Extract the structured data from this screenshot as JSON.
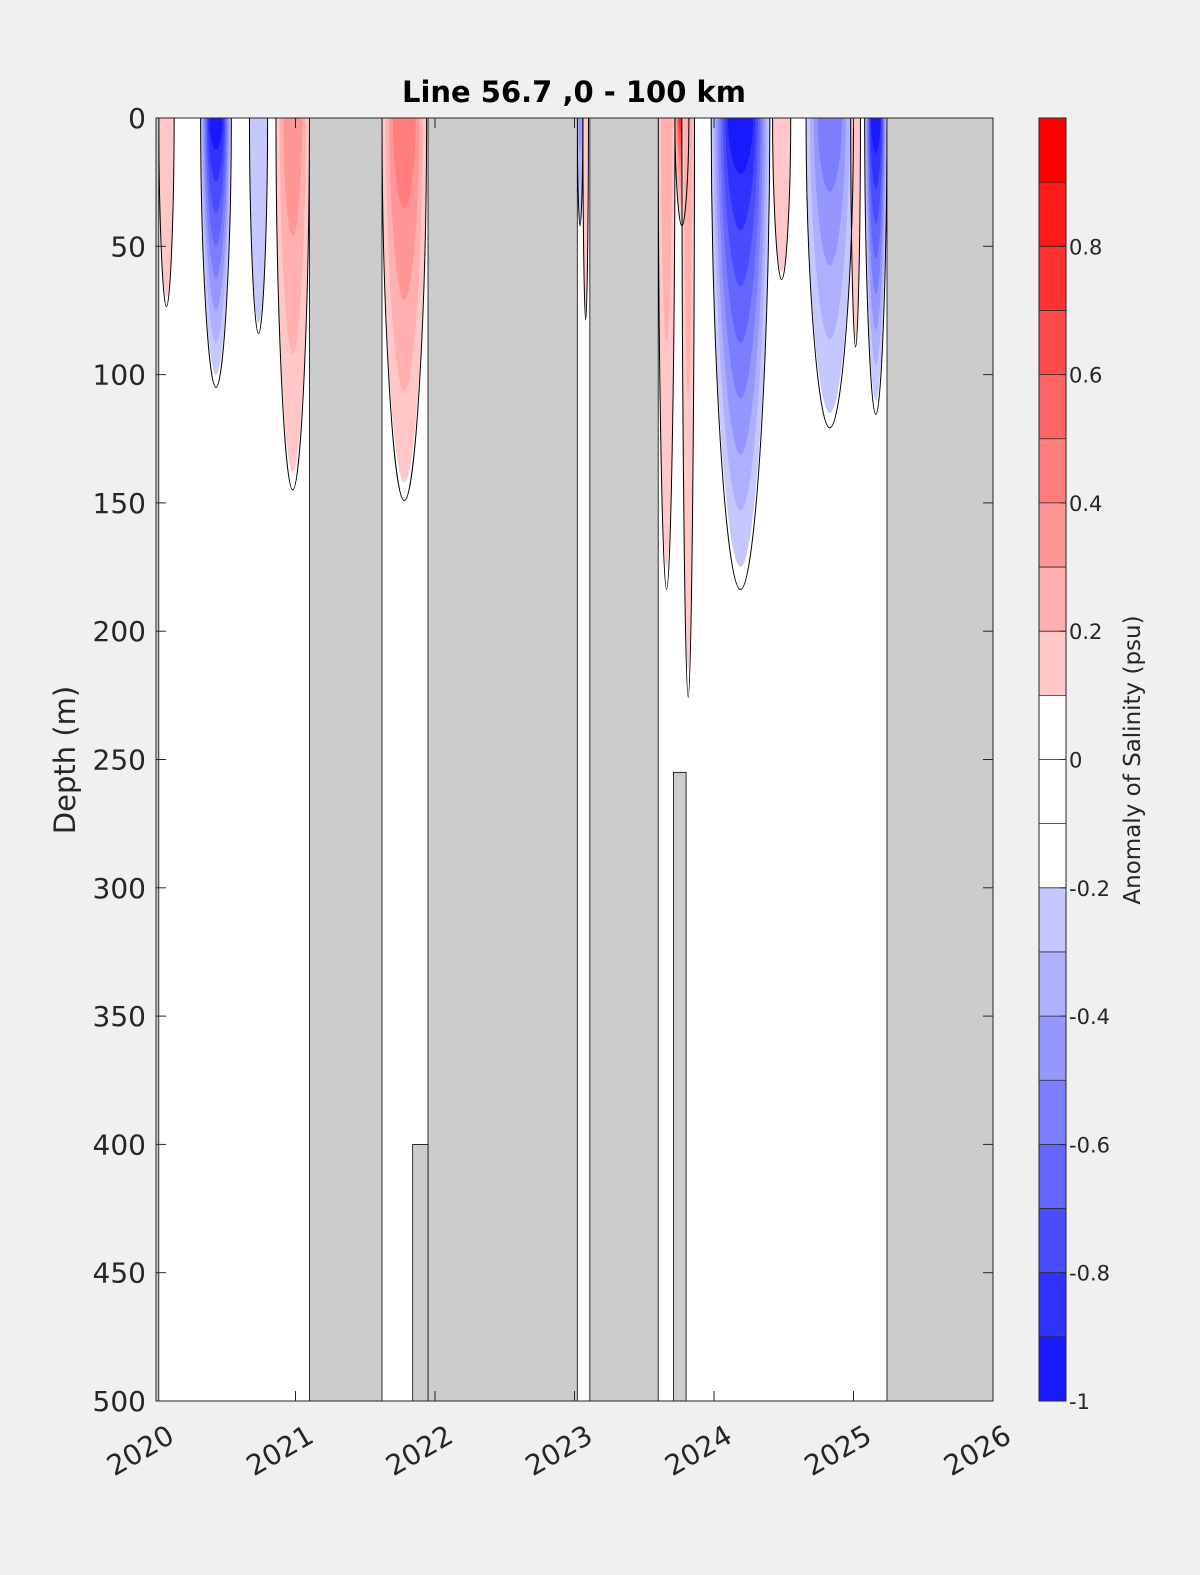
{
  "chart_data": {
    "type": "heatmap",
    "title": "Line 56.7 ,0 - 100 km",
    "ylabel": "Depth (m)",
    "xlim": [
      2020,
      2026
    ],
    "ylim": [
      0,
      500
    ],
    "y_reversed": true,
    "x_ticks": [
      "2020",
      "2021",
      "2022",
      "2023",
      "2024",
      "2025",
      "2026"
    ],
    "y_ticks": [
      "0",
      "50",
      "100",
      "150",
      "200",
      "250",
      "300",
      "350",
      "400",
      "450",
      "500"
    ],
    "no_data_color": "#cccccc",
    "no_data_intervals": [
      {
        "x0": 2021.1,
        "x1": 2021.62,
        "y0": 0,
        "y1": 500
      },
      {
        "x0": 2021.95,
        "x1": 2023.02,
        "y0": 0,
        "y1": 500
      },
      {
        "x0": 2023.11,
        "x1": 2023.6,
        "y0": 0,
        "y1": 500
      },
      {
        "x0": 2023.71,
        "x1": 2023.8,
        "y0": 255,
        "y1": 500
      },
      {
        "x0": 2025.24,
        "x1": 2026.0,
        "y0": 0,
        "y1": 500
      },
      {
        "x0": 2021.84,
        "x1": 2021.95,
        "y0": 400,
        "y1": 500
      },
      {
        "x0": 2020.0,
        "x1": 2020.02,
        "y0": 0,
        "y1": 500
      }
    ],
    "anomaly_features": [
      {
        "x_start": 2020.02,
        "x_end": 2020.13,
        "max_depth": 70,
        "peak": 0.2
      },
      {
        "x_start": 2020.32,
        "x_end": 2020.54,
        "max_depth": 100,
        "peak": -0.9
      },
      {
        "x_start": 2020.67,
        "x_end": 2020.8,
        "max_depth": 80,
        "peak": -0.2
      },
      {
        "x_start": 2020.86,
        "x_end": 2021.1,
        "max_depth": 138,
        "peak": 0.4
      },
      {
        "x_start": 2021.62,
        "x_end": 2021.94,
        "max_depth": 142,
        "peak": 0.5
      },
      {
        "x_start": 2023.02,
        "x_end": 2023.06,
        "max_depth": 40,
        "peak": -0.4
      },
      {
        "x_start": 2023.06,
        "x_end": 2023.1,
        "max_depth": 75,
        "peak": 0.2
      },
      {
        "x_start": 2023.6,
        "x_end": 2023.72,
        "max_depth": 175,
        "peak": 0.3
      },
      {
        "x_start": 2023.72,
        "x_end": 2023.82,
        "max_depth": 40,
        "peak": 0.8
      },
      {
        "x_start": 2023.77,
        "x_end": 2023.86,
        "max_depth": 215,
        "peak": 0.3
      },
      {
        "x_start": 2023.98,
        "x_end": 2024.4,
        "max_depth": 175,
        "peak": -0.95
      },
      {
        "x_start": 2024.42,
        "x_end": 2024.55,
        "max_depth": 60,
        "peak": 0.2
      },
      {
        "x_start": 2024.66,
        "x_end": 2025.0,
        "max_depth": 115,
        "peak": -0.5
      },
      {
        "x_start": 2024.98,
        "x_end": 2025.05,
        "max_depth": 85,
        "peak": 0.2
      },
      {
        "x_start": 2025.08,
        "x_end": 2025.24,
        "max_depth": 110,
        "peak": -0.9
      }
    ],
    "colorbar": {
      "label": "Anomaly of Salinity (psu)",
      "min": -1,
      "max": 1,
      "step": 0.1,
      "ticks": [
        "-1",
        "-0.8",
        "-0.6",
        "-0.4",
        "-0.2",
        "0",
        "0.2",
        "0.4",
        "0.6",
        "0.8"
      ],
      "negative_color": "#0000ff",
      "positive_color": "#ff0000",
      "zero_color": "#ffffff"
    }
  }
}
